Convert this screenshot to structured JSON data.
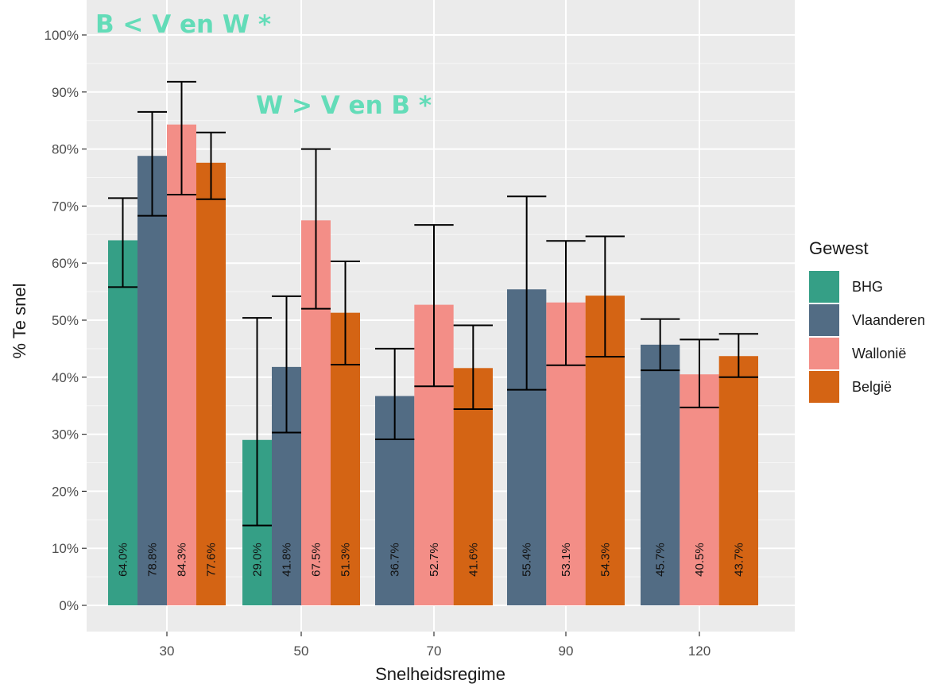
{
  "chart_data": {
    "type": "bar",
    "xlabel": "Snelheidsregime",
    "ylabel": "% Te snel",
    "categories": [
      "30",
      "50",
      "70",
      "90",
      "120"
    ],
    "ylim": [
      0,
      100
    ],
    "yticks": [
      "0%",
      "10%",
      "20%",
      "30%",
      "40%",
      "50%",
      "60%",
      "70%",
      "80%",
      "90%",
      "100%"
    ],
    "grid": true,
    "legend_title": "Gewest",
    "legend_position": "right",
    "series": [
      {
        "name": "BHG",
        "color": "#359f86",
        "values": [
          64.0,
          29.0,
          null,
          null,
          null
        ],
        "labels": [
          "64.0%",
          "29.0%",
          null,
          null,
          null
        ],
        "ci_low": [
          55.8,
          14.0,
          null,
          null,
          null
        ],
        "ci_high": [
          71.4,
          50.4,
          null,
          null,
          null
        ]
      },
      {
        "name": "Vlaanderen",
        "color": "#526c84",
        "values": [
          78.8,
          41.8,
          36.7,
          55.4,
          45.7
        ],
        "labels": [
          "78.8%",
          "41.8%",
          "36.7%",
          "55.4%",
          "45.7%"
        ],
        "ci_low": [
          68.3,
          30.3,
          29.1,
          37.8,
          41.2
        ],
        "ci_high": [
          86.5,
          54.2,
          45.0,
          71.7,
          50.2
        ]
      },
      {
        "name": "Wallonië",
        "color": "#f38e87",
        "values": [
          84.3,
          67.5,
          52.7,
          53.1,
          40.5
        ],
        "labels": [
          "84.3%",
          "67.5%",
          "52.7%",
          "53.1%",
          "40.5%"
        ],
        "ci_low": [
          72.0,
          52.0,
          38.4,
          42.1,
          34.7
        ],
        "ci_high": [
          91.8,
          80.0,
          66.7,
          63.9,
          46.6
        ]
      },
      {
        "name": "België",
        "color": "#d46414",
        "values": [
          77.6,
          51.3,
          41.6,
          54.3,
          43.7
        ],
        "labels": [
          "77.6%",
          "51.3%",
          "41.6%",
          "54.3%",
          "43.7%"
        ],
        "ci_low": [
          71.2,
          42.2,
          34.4,
          43.6,
          40.0
        ],
        "ci_high": [
          82.9,
          60.3,
          49.1,
          64.7,
          47.6
        ]
      }
    ],
    "annotations": [
      {
        "text": "B < V en W *",
        "color": "#63dcb8",
        "x": "30",
        "y": 100
      },
      {
        "text": "W > V en B *",
        "color": "#63dcb8",
        "x": "50",
        "y": 88
      }
    ]
  }
}
